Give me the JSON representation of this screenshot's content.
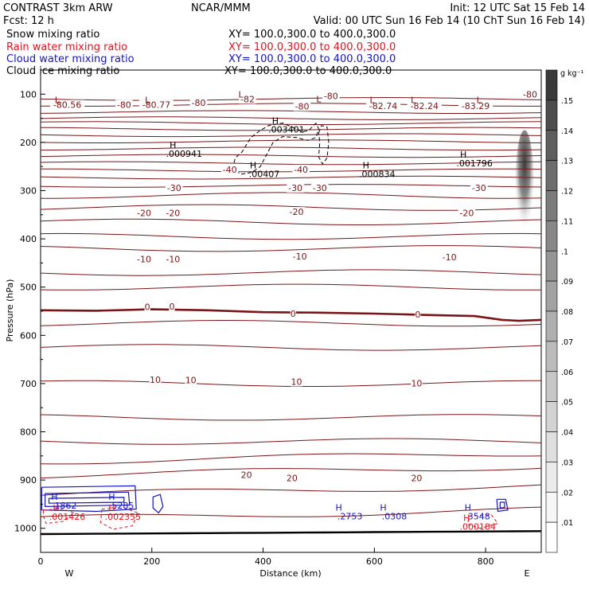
{
  "header": {
    "left1": "CONTRAST  3km ARW",
    "center1": "NCAR/MMM",
    "right1": "Init: 12 UTC Sat 15 Feb 14",
    "left2": "Fcst:    12 h",
    "right2": "Valid: 00 UTC Sun 16 Feb 14 (10 ChT Sun 16 Feb 14)"
  },
  "fields": [
    {
      "label": "Snow mixing ratio",
      "xy": "XY= 100.0,300.0 to 400.0,300.0",
      "color": "#000000"
    },
    {
      "label": "Rain water mixing ratio",
      "xy": "XY= 100.0,300.0 to 400.0,300.0",
      "color": "#e0141e"
    },
    {
      "label": "Cloud water mixing ratio",
      "xy": "XY= 100.0,300.0 to 400.0,300.0",
      "color": "#1414c8"
    },
    {
      "label": "Cloud ice mixing ratio",
      "xy": "XY= 100.0,300.0 to 400.0,300.0",
      "color": "#000000"
    }
  ],
  "chart_data": {
    "type": "contour-cross-section",
    "xlabel": "Distance (km)",
    "ylabel": "Pressure (hPa)",
    "x_ticks": [
      0,
      200,
      400,
      600,
      800
    ],
    "y_ticks": [
      100,
      200,
      300,
      400,
      500,
      600,
      700,
      800,
      900,
      1000
    ],
    "xlim": [
      0,
      900
    ],
    "ylim": [
      1050,
      50
    ],
    "x_end_labels": {
      "left": "W",
      "right": "E"
    },
    "temperature_contour_labels": [
      {
        "text": "-80.56",
        "x": 48,
        "p": 122
      },
      {
        "text": "-80",
        "x": 150,
        "p": 122
      },
      {
        "text": "-80.77",
        "x": 208,
        "p": 122
      },
      {
        "text": "-80",
        "x": 284,
        "p": 118
      },
      {
        "text": "-82",
        "x": 372,
        "p": 110
      },
      {
        "text": "-80",
        "x": 470,
        "p": 125
      },
      {
        "text": "-80",
        "x": 522,
        "p": 104
      },
      {
        "text": "-82.74",
        "x": 616,
        "p": 124
      },
      {
        "text": "-82.24",
        "x": 690,
        "p": 124
      },
      {
        "text": "-83.29",
        "x": 782,
        "p": 124
      },
      {
        "text": "-80",
        "x": 880,
        "p": 100
      },
      {
        "text": "-40",
        "x": 340,
        "p": 256
      },
      {
        "text": "-40",
        "x": 468,
        "p": 256
      },
      {
        "text": "-30",
        "x": 240,
        "p": 294
      },
      {
        "text": "-30",
        "x": 458,
        "p": 294
      },
      {
        "text": "-30",
        "x": 502,
        "p": 294
      },
      {
        "text": "-30",
        "x": 788,
        "p": 294
      },
      {
        "text": "-20",
        "x": 186,
        "p": 346
      },
      {
        "text": "-20",
        "x": 238,
        "p": 346
      },
      {
        "text": "-20",
        "x": 460,
        "p": 344
      },
      {
        "text": "-20",
        "x": 766,
        "p": 346
      },
      {
        "text": "-10",
        "x": 186,
        "p": 442
      },
      {
        "text": "-10",
        "x": 238,
        "p": 442
      },
      {
        "text": "-10",
        "x": 466,
        "p": 436
      },
      {
        "text": "-10",
        "x": 735,
        "p": 438
      },
      {
        "text": "0",
        "x": 192,
        "p": 541
      },
      {
        "text": "0",
        "x": 236,
        "p": 540
      },
      {
        "text": "0",
        "x": 454,
        "p": 555
      },
      {
        "text": "0",
        "x": 678,
        "p": 557
      },
      {
        "text": "10",
        "x": 206,
        "p": 692
      },
      {
        "text": "10",
        "x": 270,
        "p": 693
      },
      {
        "text": "10",
        "x": 460,
        "p": 696
      },
      {
        "text": "10",
        "x": 676,
        "p": 699
      },
      {
        "text": "20",
        "x": 370,
        "p": 889
      },
      {
        "text": "20",
        "x": 452,
        "p": 896
      },
      {
        "text": "20",
        "x": 676,
        "p": 896
      }
    ],
    "temperature_L_marks": [
      {
        "x": 30,
        "p": 112
      },
      {
        "x": 192,
        "p": 112
      },
      {
        "x": 360,
        "p": 100
      },
      {
        "x": 500,
        "p": 110
      },
      {
        "x": 596,
        "p": 112
      },
      {
        "x": 670,
        "p": 112
      },
      {
        "x": 788,
        "p": 112
      }
    ],
    "max_labels": [
      {
        "text": ".003401",
        "x": 442,
        "p": 173,
        "color": "#000000"
      },
      {
        "text": ".000941",
        "x": 258,
        "p": 223,
        "color": "#000000"
      },
      {
        "text": ".00407",
        "x": 402,
        "p": 265,
        "color": "#000000"
      },
      {
        "text": ".000834",
        "x": 605,
        "p": 265,
        "color": "#000000"
      },
      {
        "text": ".001796",
        "x": 780,
        "p": 243,
        "color": "#000000"
      },
      {
        "text": "1862",
        "x": 45,
        "p": 953,
        "color": "#1414c8"
      },
      {
        "text": "5285",
        "x": 148,
        "p": 953,
        "color": "#1414c8"
      },
      {
        "text": ".2753",
        "x": 556,
        "p": 975,
        "color": "#1414c8"
      },
      {
        "text": ".0308",
        "x": 636,
        "p": 975,
        "color": "#1414c8"
      },
      {
        "text": "3548",
        "x": 788,
        "p": 975,
        "color": "#1414c8"
      },
      {
        "text": ".001426",
        "x": 48,
        "p": 976,
        "color": "#e0141e"
      },
      {
        "text": ".002355",
        "x": 148,
        "p": 976,
        "color": "#e0141e"
      },
      {
        "text": ".000184",
        "x": 786,
        "p": 996,
        "color": "#e0141e"
      }
    ],
    "colorbar": {
      "unit": "g kg⁻¹",
      "ticks": [
        ".15",
        ".14",
        ".13",
        ".12",
        ".11",
        ".1",
        ".09",
        ".08",
        ".07",
        ".06",
        ".05",
        ".04",
        ".03",
        ".02",
        ".01"
      ],
      "colors": [
        "#3a3a3a",
        "#4d4d4d",
        "#5e5e5e",
        "#6d6d6d",
        "#7b7b7b",
        "#888888",
        "#959595",
        "#a2a2a2",
        "#afafaf",
        "#bbbbbb",
        "#c7c7c7",
        "#d3d3d3",
        "#dfdfdf",
        "#ebebeb",
        "#f6f6f6",
        "#ffffff"
      ]
    }
  }
}
